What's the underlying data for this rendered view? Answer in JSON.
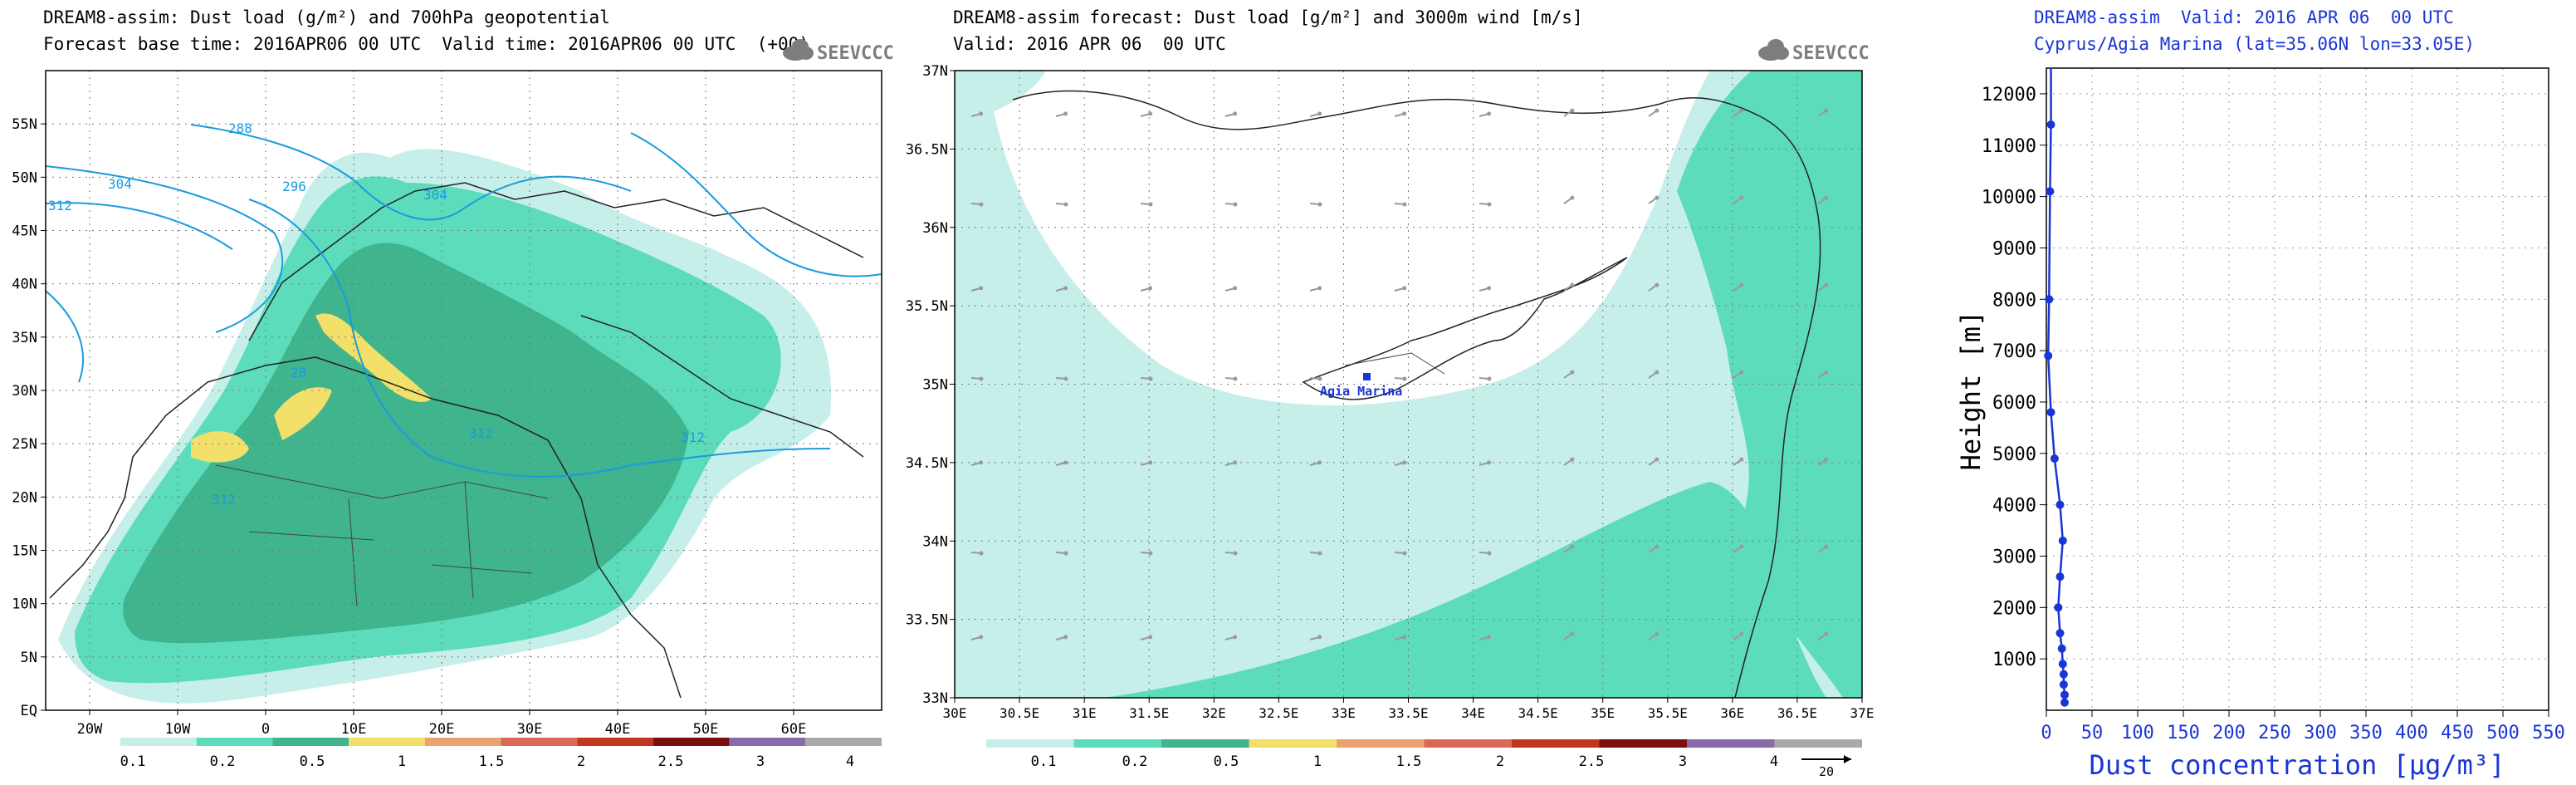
{
  "colors": {
    "dust_levels": [
      "#c6efe9",
      "#5ddcbc",
      "#3fb48d",
      "#f2e06a",
      "#e9a36e",
      "#d96a55",
      "#c2351e",
      "#7a0f10",
      "#8a6aa9",
      "#a9a9a9"
    ],
    "geopotential": "#1a9be0",
    "profile": "#1a35d6",
    "land_border": "#222222"
  },
  "logo": {
    "text": "SEEVCCC",
    "icon": "cloud-icon"
  },
  "panel_left": {
    "title1": "DREAM8-assim: Dust load (g/m²) and 700hPa geopotential",
    "title2": "Forecast base time: 2016APR06 00 UTC  Valid time: 2016APR06 00 UTC  (+00)",
    "chart_data": {
      "type": "map",
      "lat_ticks": [
        "EQ",
        "5N",
        "10N",
        "15N",
        "20N",
        "25N",
        "30N",
        "35N",
        "40N",
        "45N",
        "50N",
        "55N"
      ],
      "lon_ticks": [
        "20W",
        "10W",
        "0",
        "10E",
        "20E",
        "30E",
        "40E",
        "50E",
        "60E"
      ],
      "contour_labels": [
        "288",
        "296",
        "304",
        "304",
        "312",
        "312",
        "312",
        "312",
        "28"
      ],
      "colorbar": [
        "0.1",
        "0.2",
        "0.5",
        "1",
        "1.5",
        "2",
        "2.5",
        "3",
        "4"
      ]
    }
  },
  "panel_mid": {
    "title1": "DREAM8-assim forecast: Dust load [g/m²] and 3000m wind [m/s]",
    "title2": "Valid: 2016 APR 06  00 UTC",
    "chart_data": {
      "type": "map",
      "lat_ticks": [
        "33N",
        "33.5N",
        "34N",
        "34.5N",
        "35N",
        "35.5N",
        "36N",
        "36.5N",
        "37N"
      ],
      "lon_ticks": [
        "30E",
        "30.5E",
        "31E",
        "31.5E",
        "32E",
        "32.5E",
        "33E",
        "33.5E",
        "34E",
        "34.5E",
        "35E",
        "35.5E",
        "36E",
        "36.5E",
        "37E"
      ],
      "station": "Agia Marina",
      "colorbar": [
        "0.1",
        "0.2",
        "0.5",
        "1",
        "1.5",
        "2",
        "2.5",
        "3",
        "4"
      ],
      "wind_ref": "20"
    }
  },
  "panel_right": {
    "title1": "DREAM8-assim  Valid: 2016 APR 06  00 UTC",
    "title2": "Cyprus/Agia Marina (lat=35.06N lon=33.05E)",
    "chart_data": {
      "type": "line",
      "xlabel": "Dust concentration [μg/m³]",
      "ylabel": "Height [m]",
      "xlim": [
        0,
        550
      ],
      "ylim": [
        0,
        12500
      ],
      "x_ticks": [
        "0",
        "50",
        "100",
        "150",
        "200",
        "250",
        "300",
        "350",
        "400",
        "450",
        "500",
        "550"
      ],
      "y_ticks": [
        "1000",
        "2000",
        "3000",
        "4000",
        "5000",
        "6000",
        "7000",
        "8000",
        "9000",
        "10000",
        "11000",
        "12000"
      ],
      "series": [
        {
          "name": "Agia Marina",
          "x": [
            20,
            20,
            19,
            19,
            18,
            17,
            15,
            13,
            15,
            18,
            15,
            9,
            5,
            2,
            3,
            4,
            5
          ],
          "y": [
            150,
            300,
            500,
            700,
            900,
            1200,
            1500,
            2000,
            2600,
            3300,
            4000,
            4900,
            5800,
            6900,
            8000,
            10100,
            11400
          ]
        }
      ]
    }
  }
}
